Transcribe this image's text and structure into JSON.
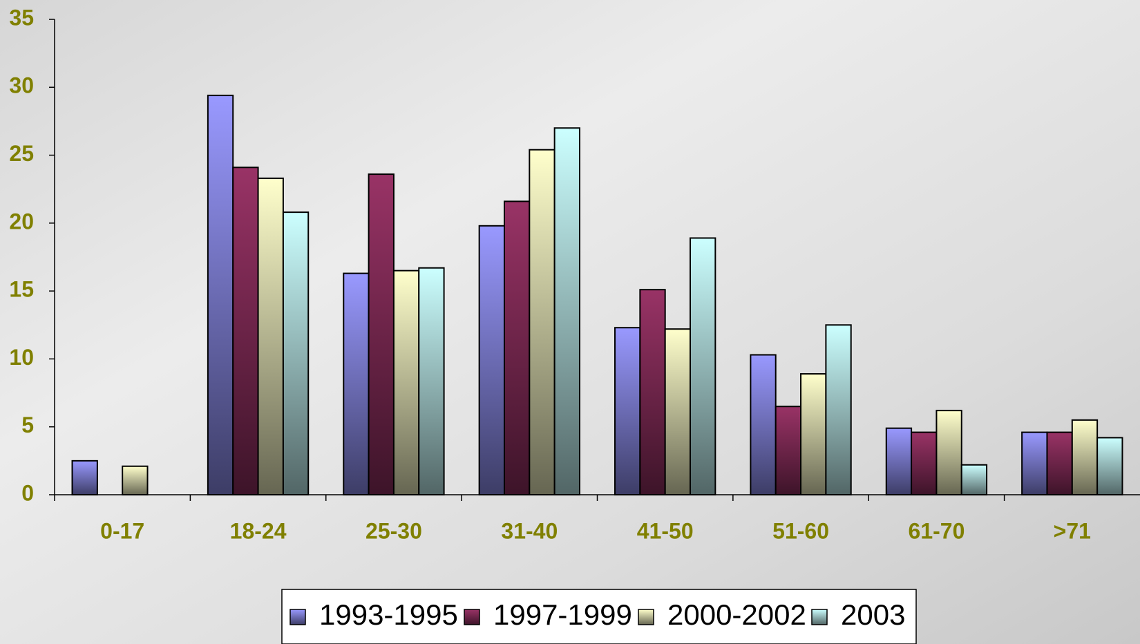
{
  "chart_data": {
    "type": "bar",
    "categories": [
      "0-17",
      "18-24",
      "25-30",
      "31-40",
      "41-50",
      "51-60",
      "61-70",
      ">71"
    ],
    "series": [
      {
        "name": "1993-1995",
        "color": "#9999ff",
        "values": [
          2.5,
          29.4,
          16.3,
          19.8,
          12.3,
          10.3,
          4.9,
          4.6
        ]
      },
      {
        "name": "1997-1999",
        "color": "#993366",
        "values": [
          null,
          24.1,
          23.6,
          21.6,
          15.1,
          6.5,
          4.6,
          4.6
        ]
      },
      {
        "name": "2000-2002",
        "color": "#ffffcc",
        "values": [
          2.1,
          23.3,
          16.5,
          25.4,
          12.2,
          8.9,
          6.2,
          5.5
        ]
      },
      {
        "name": "2003",
        "color": "#ccffff",
        "values": [
          null,
          20.8,
          16.7,
          27.0,
          18.9,
          12.5,
          2.2,
          4.2
        ]
      }
    ],
    "ylim": [
      0,
      35
    ],
    "yticks": [
      0,
      5,
      10,
      15,
      20,
      25,
      30,
      35
    ],
    "legend": "bottom"
  }
}
